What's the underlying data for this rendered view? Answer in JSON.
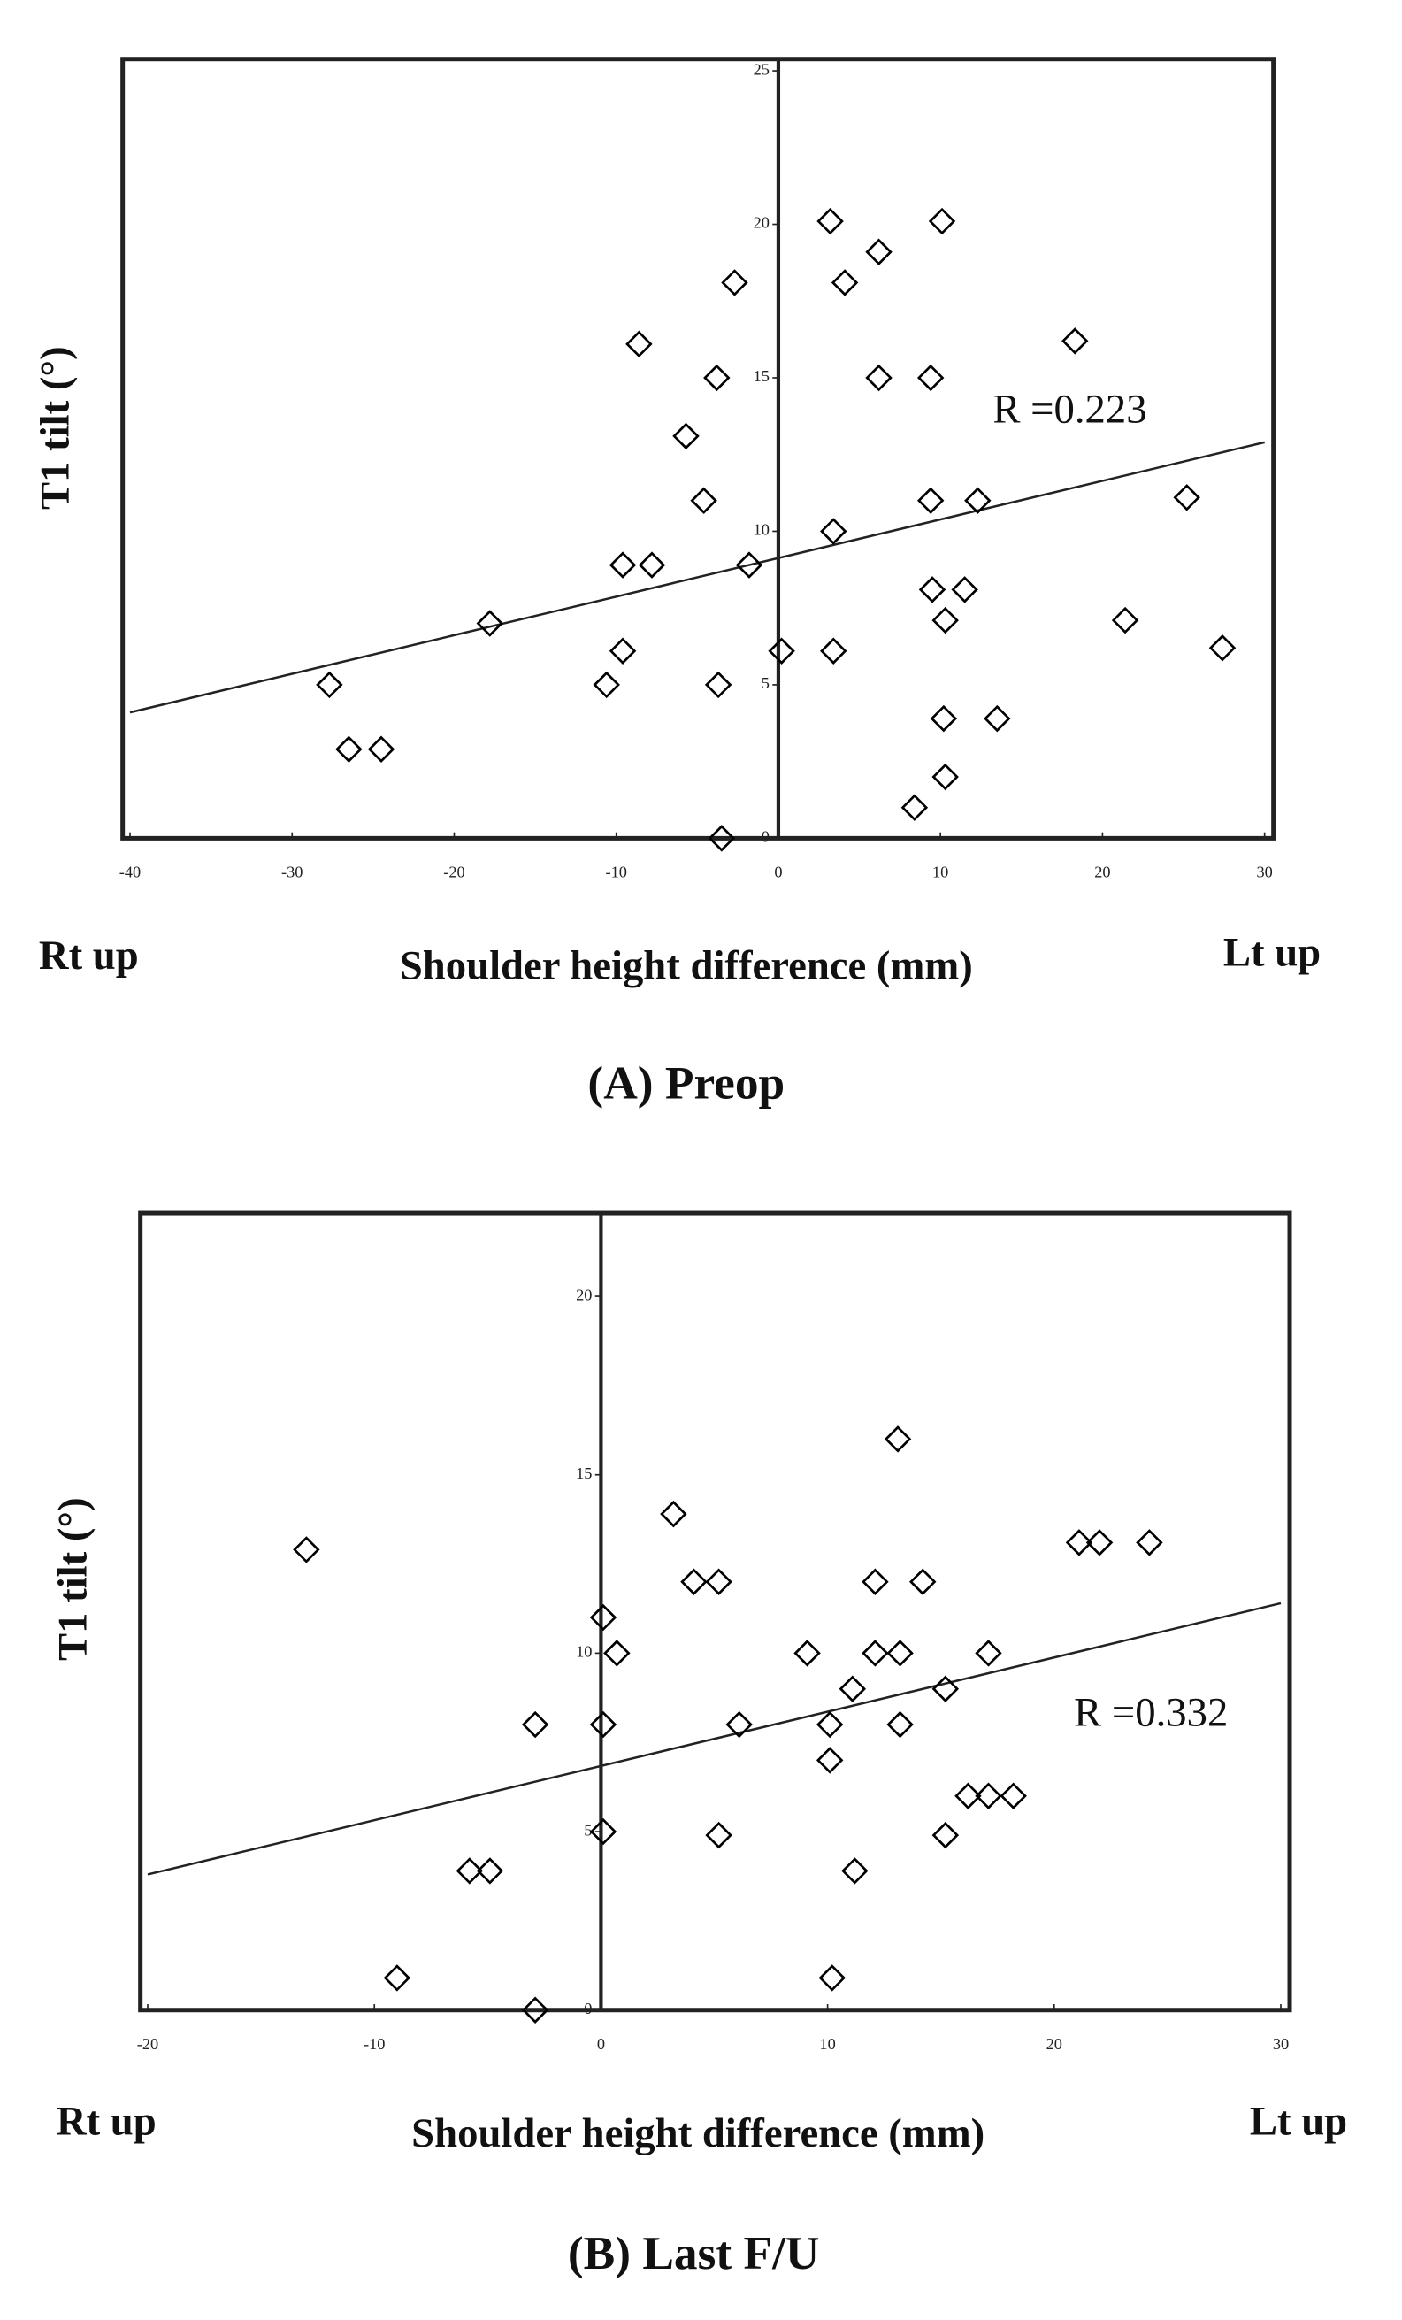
{
  "chart_data": [
    {
      "type": "scatter",
      "title": "(A) Preop",
      "x_label": "Shoulder height difference (mm)",
      "y_label": "T1 tilt (°)",
      "x_left_label": "Rt up",
      "x_right_label": "Lt up",
      "annotation": "R =0.223",
      "xlim": [
        -40,
        30
      ],
      "xticks": [
        -40,
        -30,
        -20,
        -10,
        0,
        10,
        20,
        30
      ],
      "ylim": [
        0,
        25
      ],
      "yticks": [
        0,
        5,
        10,
        15,
        20,
        25
      ],
      "series": [
        {
          "color": "#000000",
          "x": [
            3.2,
            10.1,
            6.2,
            4.1,
            -2.7,
            -8.6,
            18.3,
            -3.8,
            6.2,
            9.4,
            -5.7,
            -4.6,
            9.4,
            12.3,
            25.2,
            3.4,
            -9.6,
            -7.8,
            -1.8,
            -17.8,
            9.5,
            11.5,
            10.3,
            21.4,
            -9.6,
            0.2,
            3.4,
            27.4,
            -27.7,
            -10.6,
            -3.7,
            10.2,
            13.5,
            -26.5,
            -24.5,
            10.3,
            8.4,
            -3.5
          ],
          "values": [
            20.1,
            20.1,
            19.1,
            18.1,
            18.1,
            16.1,
            16.2,
            15,
            15,
            15,
            13.1,
            11,
            11,
            11,
            11.1,
            10,
            8.9,
            8.9,
            8.9,
            7,
            8.1,
            8.1,
            7.1,
            7.1,
            6.1,
            6.1,
            6.1,
            6.2,
            5,
            5,
            5,
            3.9,
            3.9,
            2.9,
            2.9,
            2,
            1,
            0
          ]
        }
      ],
      "trend": {
        "x": [
          -40,
          30
        ],
        "y": [
          4.1,
          12.9
        ]
      }
    },
    {
      "type": "scatter",
      "title": "(B) Last F/U",
      "x_label": "Shoulder height difference (mm)",
      "y_label": "T1 tilt (°)",
      "x_left_label": "Rt up",
      "x_right_label": "Lt up",
      "annotation": "R =0.332",
      "xlim": [
        -20,
        30
      ],
      "xticks": [
        -20,
        -10,
        0,
        10,
        20,
        30
      ],
      "ylim": [
        0,
        22
      ],
      "yticks": [
        0,
        5,
        10,
        15,
        20
      ],
      "series": [
        {
          "color": "#000000",
          "x": [
            13.1,
            3.2,
            -13,
            21.1,
            22,
            24.2,
            4.1,
            5.2,
            12.1,
            14.2,
            0.1,
            0.7,
            9.1,
            12.1,
            13.2,
            17.1,
            11.1,
            15.2,
            -2.9,
            0.1,
            6.1,
            10.1,
            13.2,
            10.1,
            16.2,
            17.1,
            18.2,
            0.1,
            5.2,
            15.2,
            -5.8,
            -4.9,
            11.2,
            -9,
            10.2,
            -2.9
          ],
          "values": [
            16,
            13.9,
            12.9,
            13.1,
            13.1,
            13.1,
            12,
            12,
            12,
            12,
            11,
            10,
            10,
            10,
            10,
            10,
            9,
            9,
            8,
            8,
            8,
            8,
            8,
            7,
            6,
            6,
            6,
            5,
            4.9,
            4.9,
            3.9,
            3.9,
            3.9,
            0.9,
            0.9,
            0
          ]
        }
      ],
      "trend": {
        "x": [
          -20,
          30
        ],
        "y": [
          3.8,
          11.4
        ]
      }
    }
  ]
}
